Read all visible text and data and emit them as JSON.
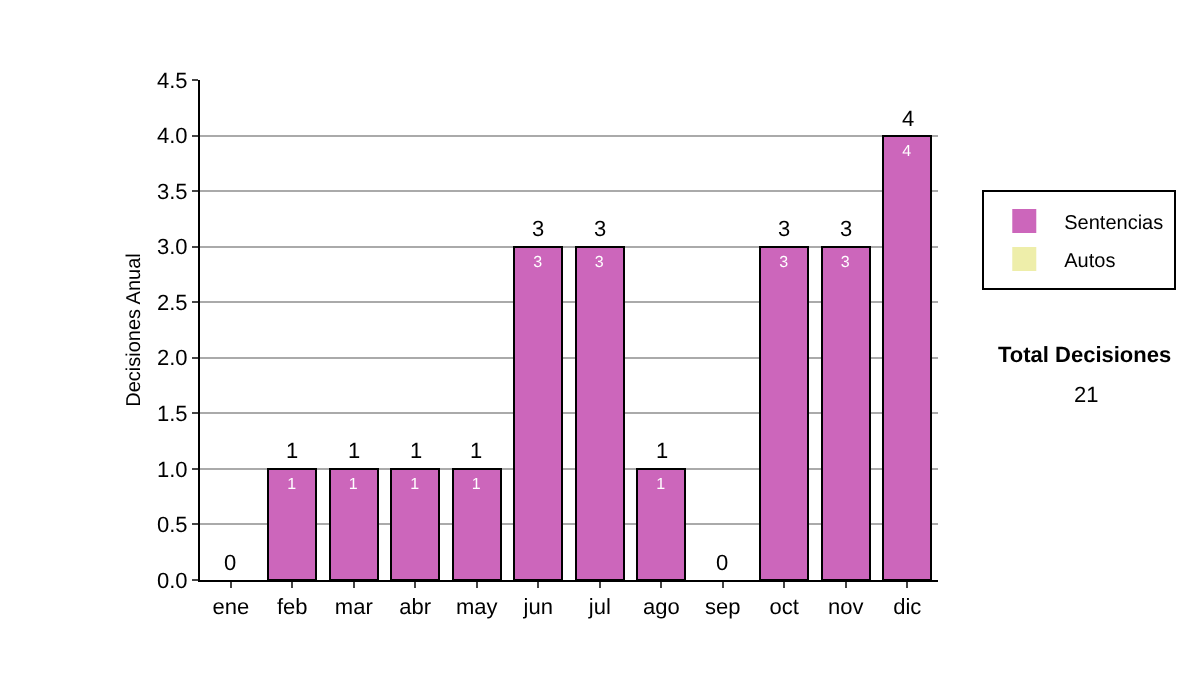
{
  "chart_data": {
    "type": "bar",
    "stacked": true,
    "ylabel": "Decisiones Anual",
    "categories": [
      "ene",
      "feb",
      "mar",
      "abr",
      "may",
      "jun",
      "jul",
      "ago",
      "sep",
      "oct",
      "nov",
      "dic"
    ],
    "series": [
      {
        "name": "Sentencias",
        "color": "#cc66bb",
        "values": [
          0,
          1,
          1,
          1,
          1,
          3,
          3,
          1,
          0,
          3,
          3,
          4
        ],
        "value_labels": [
          null,
          "1",
          "1",
          "1",
          "1",
          "3",
          "3",
          "1",
          null,
          "3",
          "3",
          "4"
        ]
      },
      {
        "name": "Autos",
        "color": "#eeeeaa",
        "values": [
          0,
          0,
          0,
          0,
          0,
          0,
          0,
          0,
          0,
          0,
          0,
          0
        ]
      }
    ],
    "totals": [
      "0",
      "1",
      "1",
      "1",
      "1",
      "3",
      "3",
      "1",
      "0",
      "3",
      "3",
      "4"
    ],
    "ylim": [
      0,
      4.5
    ],
    "yticks": [
      {
        "value": 0,
        "label": "0.0"
      },
      {
        "value": 0.5,
        "label": "0.5"
      },
      {
        "value": 1,
        "label": "1.0"
      },
      {
        "value": 1.5,
        "label": "1.5"
      },
      {
        "value": 2,
        "label": "2.0"
      },
      {
        "value": 2.5,
        "label": "2.5"
      },
      {
        "value": 3,
        "label": "3.0"
      },
      {
        "value": 3.5,
        "label": "3.5"
      },
      {
        "value": 4,
        "label": "4.0"
      },
      {
        "value": 4.5,
        "label": "4.5"
      }
    ],
    "grid": "y",
    "legend": "right",
    "annotations": [
      "Total Decisiones",
      "21"
    ]
  }
}
